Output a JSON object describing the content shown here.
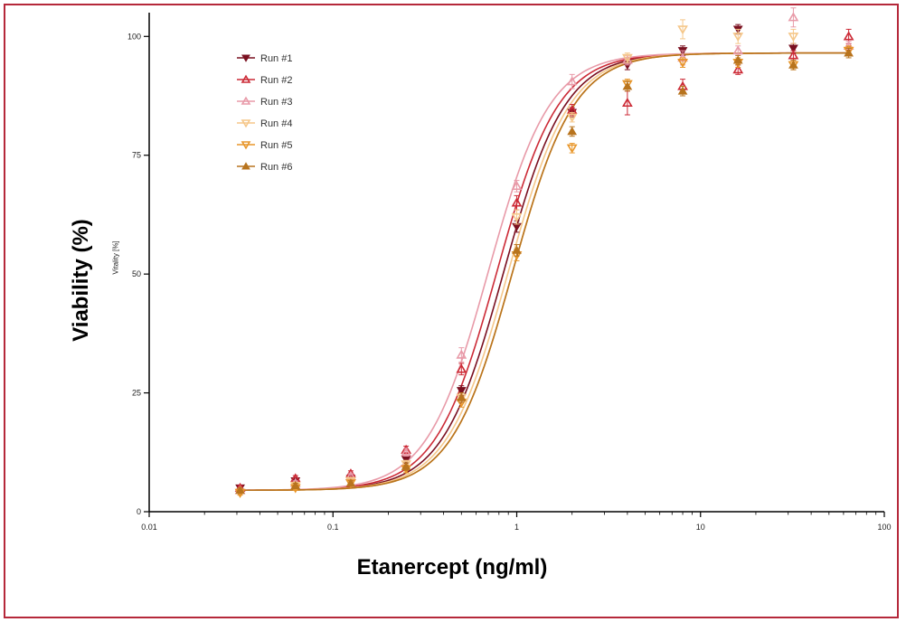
{
  "labels": {
    "outer_ylabel": "Viability (%)",
    "outer_xlabel": "Etanercept (ng/ml)",
    "inner_ylabel": "Vitality [%]"
  },
  "chart_data": {
    "type": "scatter",
    "title": "",
    "xlabel": "Etanercept (ng/ml)",
    "ylabel": "Vitality [%]",
    "xscale": "log",
    "xlim": [
      0.01,
      100
    ],
    "ylim": [
      0,
      105
    ],
    "xticks": [
      0.01,
      0.1,
      1,
      10,
      100
    ],
    "xtick_labels": [
      "0.01",
      "0.1",
      "1",
      "10",
      "100"
    ],
    "yticks": [
      0,
      25,
      50,
      75,
      100
    ],
    "ytick_labels": [
      "0",
      "25",
      "50",
      "75",
      "100"
    ],
    "grid": false,
    "legend_position": "top-left",
    "x": [
      0.03125,
      0.0625,
      0.125,
      0.25,
      0.5,
      1,
      2,
      4,
      8,
      16,
      32,
      64
    ],
    "series": [
      {
        "name": "Run #1",
        "color": "#7a1020",
        "marker": "triangle-down",
        "values": [
          5,
          6.5,
          7,
          11,
          25.5,
          60,
          84,
          94,
          97,
          101.5,
          97.5,
          97
        ],
        "errors": [
          0.5,
          0.5,
          0.5,
          0.8,
          1.0,
          1.2,
          1.0,
          1.0,
          1.0,
          1.0,
          1.0,
          0.8
        ],
        "fit_ec50": 0.85,
        "fit_hill": 2.6
      },
      {
        "name": "Run #2",
        "color": "#cc2a36",
        "marker": "triangle-up-open",
        "values": [
          5,
          7,
          8,
          13,
          30,
          65,
          84.5,
          86,
          89.5,
          93,
          96,
          100
        ],
        "errors": [
          0.5,
          0.6,
          0.6,
          0.8,
          1.2,
          1.5,
          1.2,
          2.5,
          1.5,
          1.0,
          1.0,
          1.5
        ],
        "fit_ec50": 0.78,
        "fit_hill": 2.6
      },
      {
        "name": "Run #3",
        "color": "#e89aa8",
        "marker": "triangle-up-open",
        "values": [
          4.5,
          6,
          7.5,
          12.5,
          33,
          68.5,
          90.5,
          95,
          95.5,
          97,
          104,
          98
        ],
        "errors": [
          0.5,
          0.5,
          0.5,
          0.8,
          1.5,
          1.2,
          1.5,
          1.0,
          1.5,
          1.0,
          2.0,
          1.0
        ],
        "fit_ec50": 0.7,
        "fit_hill": 2.6
      },
      {
        "name": "Run #4",
        "color": "#f5c78a",
        "marker": "triangle-down-open",
        "values": [
          4,
          5.5,
          6.5,
          10,
          24,
          62,
          83,
          95.5,
          101.5,
          100,
          100,
          97
        ],
        "errors": [
          0.5,
          0.5,
          0.5,
          0.8,
          1.0,
          1.5,
          1.0,
          1.0,
          2.0,
          1.5,
          1.5,
          1.0
        ],
        "fit_ec50": 0.9,
        "fit_hill": 2.6
      },
      {
        "name": "Run #5",
        "color": "#e8962a",
        "marker": "triangle-down-open",
        "values": [
          4,
          5,
          6,
          9,
          23,
          54,
          76.5,
          90,
          94.5,
          94.5,
          94,
          97
        ],
        "errors": [
          0.5,
          0.5,
          0.5,
          0.8,
          1.0,
          1.2,
          1.0,
          1.0,
          1.0,
          1.0,
          1.0,
          1.0
        ],
        "fit_ec50": 0.95,
        "fit_hill": 2.6
      },
      {
        "name": "Run #6",
        "color": "#b8741e",
        "marker": "triangle-up",
        "values": [
          4.5,
          5.5,
          6,
          9.5,
          24,
          55,
          80,
          89.5,
          88.5,
          95,
          94,
          96.5
        ],
        "errors": [
          0.5,
          0.5,
          0.5,
          0.8,
          1.0,
          1.2,
          1.0,
          1.0,
          1.0,
          1.0,
          1.0,
          1.0
        ],
        "fit_ec50": 0.95,
        "fit_hill": 2.6
      }
    ],
    "fit_bottom": 4.5,
    "fit_top": 96.5
  }
}
